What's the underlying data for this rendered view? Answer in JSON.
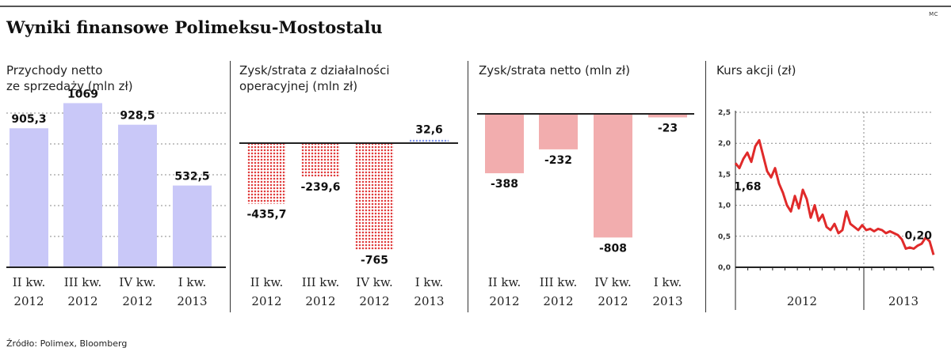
{
  "header": {
    "title": "Wyniki finansowe Polimeksu-Mostostalu",
    "tag": "MC"
  },
  "source": "Źródło: Polimex, Bloomberg",
  "colors": {
    "revenue": "#c9c8f8",
    "operating_dots": "#e03a3a",
    "operating_positive": "#8fa4ee",
    "net": "#f2adae",
    "price_line": "#e02a2a"
  },
  "chart_data": [
    {
      "type": "bar",
      "title": "Przychody netto ze sprzedaży (mln zł)",
      "title_lines": [
        "Przychody netto",
        "ze sprzedaży (mln zł)"
      ],
      "categories": [
        [
          "II kw.",
          "2012"
        ],
        [
          "III kw.",
          "2012"
        ],
        [
          "IV kw.",
          "2012"
        ],
        [
          "I kw.",
          "2013"
        ]
      ],
      "values": [
        905.3,
        1069,
        928.5,
        532.5
      ],
      "value_labels": [
        "905,3",
        "1069",
        "928,5",
        "532,5"
      ],
      "ylim": [
        0,
        1200
      ],
      "grid": true
    },
    {
      "type": "bar",
      "title": "Zysk/strata z działalności operacyjnej (mln zł)",
      "title_lines": [
        "Zysk/strata z działalności",
        "operacyjnej (mln zł)"
      ],
      "categories": [
        [
          "II kw.",
          "2012"
        ],
        [
          "III kw.",
          "2012"
        ],
        [
          "IV kw.",
          "2012"
        ],
        [
          "I kw.",
          "2013"
        ]
      ],
      "values": [
        -435.7,
        -239.6,
        -765,
        32.6
      ],
      "value_labels": [
        "-435,7",
        "-239,6",
        "-765",
        "32,6"
      ],
      "ylim": [
        -800,
        100
      ]
    },
    {
      "type": "bar",
      "title": "Zysk/strata netto (mln zł)",
      "title_lines": [
        "Zysk/strata netto (mln zł)"
      ],
      "categories": [
        [
          "II kw.",
          "2012"
        ],
        [
          "III kw.",
          "2012"
        ],
        [
          "IV kw.",
          "2012"
        ],
        [
          "I kw.",
          "2013"
        ]
      ],
      "values": [
        -388,
        -232,
        -808,
        -23
      ],
      "value_labels": [
        "-388",
        "-232",
        "-808",
        "-23"
      ],
      "ylim": [
        -850,
        0
      ]
    },
    {
      "type": "line",
      "title": "Kurs akcji (zł)",
      "title_lines": [
        "Kurs akcji (zł)"
      ],
      "ylim": [
        0,
        2.5
      ],
      "yticks": [
        0,
        0.5,
        1.0,
        1.5,
        2.0,
        2.5
      ],
      "ytick_labels": [
        "0,0",
        "0,5",
        "1,0",
        "1,5",
        "2,0",
        "2,5"
      ],
      "x_labels": [
        "2012",
        "2013"
      ],
      "x": [
        0,
        0.02,
        0.04,
        0.06,
        0.08,
        0.1,
        0.12,
        0.14,
        0.16,
        0.18,
        0.2,
        0.22,
        0.24,
        0.26,
        0.28,
        0.3,
        0.32,
        0.34,
        0.36,
        0.38,
        0.4,
        0.42,
        0.44,
        0.46,
        0.48,
        0.5,
        0.52,
        0.54,
        0.56,
        0.58,
        0.6,
        0.62,
        0.64,
        0.66,
        0.68,
        0.7,
        0.72,
        0.74,
        0.76,
        0.78,
        0.8,
        0.82,
        0.84,
        0.86,
        0.88,
        0.9,
        0.92,
        0.94,
        0.96,
        0.98,
        1.0
      ],
      "values": [
        1.68,
        1.6,
        1.75,
        1.85,
        1.7,
        1.95,
        2.05,
        1.8,
        1.55,
        1.45,
        1.6,
        1.35,
        1.2,
        1.0,
        0.9,
        1.15,
        0.95,
        1.25,
        1.1,
        0.8,
        1.0,
        0.75,
        0.85,
        0.65,
        0.6,
        0.7,
        0.55,
        0.6,
        0.9,
        0.7,
        0.65,
        0.6,
        0.68,
        0.6,
        0.62,
        0.58,
        0.62,
        0.6,
        0.55,
        0.58,
        0.55,
        0.52,
        0.45,
        0.3,
        0.32,
        0.3,
        0.35,
        0.38,
        0.48,
        0.42,
        0.2
      ],
      "annotations": [
        {
          "text": "1,68",
          "x": 0,
          "y": 1.68
        },
        {
          "text": "0,20",
          "x": 1.0,
          "y": 0.2
        }
      ]
    }
  ]
}
